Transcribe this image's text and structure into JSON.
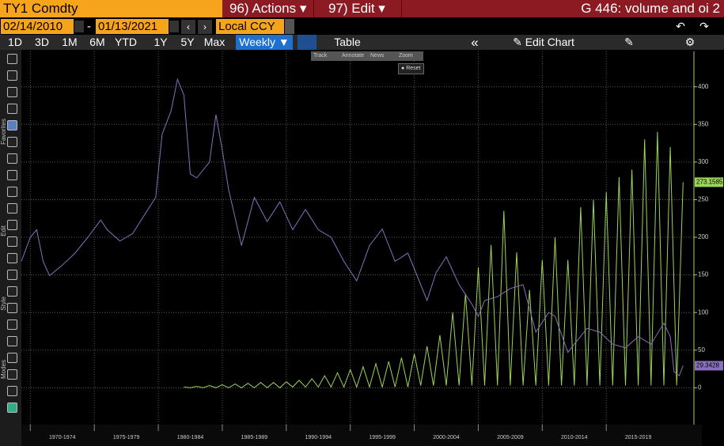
{
  "header": {
    "security": "TY1 Comdty",
    "actions": "96) Actions ▾",
    "edit": "97) Edit ▾",
    "title": "G 446: volume and oi 2"
  },
  "dates": {
    "start": "02/14/2010",
    "separator": "-",
    "end": "01/13/2021",
    "currency": "Local CCY"
  },
  "toolbar": {
    "periods": [
      "1D",
      "3D",
      "1M",
      "6M",
      "YTD",
      "1Y",
      "5Y",
      "Max"
    ],
    "frequency": "Weekly ▼",
    "table": "Table",
    "collapse": "«",
    "edit_chart": "Edit Chart"
  },
  "chart_tools": {
    "items": [
      "Track",
      "Annotate",
      "News",
      "Zoom"
    ],
    "reset": "Reset"
  },
  "sidebar": {
    "sections": [
      "Favorites",
      "Edit",
      "Style",
      "Modes"
    ]
  },
  "chart_data": {
    "type": "line",
    "xlim": [
      1969.3,
      2021.85
    ],
    "xticks": [
      {
        "value": 1970,
        "label": "1970-1974"
      },
      {
        "value": 1975,
        "label": "1975-1979"
      },
      {
        "value": 1980,
        "label": "1980-1984"
      },
      {
        "value": 1985,
        "label": "1985-1989"
      },
      {
        "value": 1990,
        "label": "1990-1994"
      },
      {
        "value": 1995,
        "label": "1995-1999"
      },
      {
        "value": 2000,
        "label": "2000-2004"
      },
      {
        "value": 2005,
        "label": "2005-2009"
      },
      {
        "value": 2010,
        "label": "2010-2014"
      },
      {
        "value": 2015,
        "label": "2015-2019"
      }
    ],
    "ylim": [
      -49,
      447
    ],
    "yticks": [
      0,
      50,
      100,
      150,
      200,
      250,
      300,
      350,
      400
    ],
    "grid": true,
    "series": [
      {
        "color": "#9bd45a",
        "x": [
          1982,
          1982.5,
          1983,
          1983.5,
          1984,
          1984.5,
          1985,
          1985.5,
          1986,
          1986.5,
          1987,
          1987.5,
          1988,
          1988.5,
          1989,
          1989.5,
          1990,
          1990.5,
          1991,
          1991.5,
          1992,
          1992.5,
          1993,
          1993.5,
          1994,
          1994.5,
          1995,
          1995.5,
          1996,
          1996.5,
          1997,
          1997.5,
          1998,
          1998.5,
          1999,
          1999.5,
          2000,
          2000.5,
          2001,
          2001.5,
          2002,
          2002.5,
          2003,
          2003.5,
          2004,
          2004.5,
          2005,
          2005.5,
          2006,
          2006.5,
          2007,
          2007.5,
          2008,
          2008.5,
          2009,
          2009.5,
          2010,
          2010.5,
          2011,
          2011.5,
          2012,
          2012.5,
          2013,
          2013.5,
          2014,
          2014.5,
          2015,
          2015.5,
          2016,
          2016.5,
          2017,
          2017.5,
          2018,
          2018.5,
          2019,
          2019.5,
          2020,
          2020.5,
          2021.0
        ],
        "values": [
          1,
          0,
          2,
          0,
          3,
          0,
          4,
          0,
          5,
          0,
          6,
          0,
          7,
          0,
          7,
          0,
          8,
          1,
          10,
          1,
          12,
          1,
          16,
          1,
          20,
          1,
          24,
          1,
          28,
          1,
          32,
          1,
          35,
          1,
          40,
          1,
          45,
          3,
          55,
          3,
          70,
          3,
          100,
          3,
          125,
          3,
          160,
          3,
          190,
          3,
          235,
          3,
          180,
          3,
          130,
          3,
          170,
          3,
          200,
          3,
          170,
          3,
          240,
          3,
          250,
          3,
          260,
          3,
          280,
          3,
          290,
          3,
          330,
          3,
          340,
          3,
          320,
          3,
          273.1585
        ]
      },
      {
        "color": "#8a6fc0",
        "x": [
          1969.3,
          1970.0,
          1970.5,
          1971.0,
          1971.5,
          1972.5,
          1973.5,
          1974.5,
          1975.5,
          1976.0,
          1977.0,
          1978.0,
          1979.0,
          1979.8,
          1980.3,
          1981.0,
          1981.5,
          1982.0,
          1982.5,
          1983.0,
          1984.0,
          1984.5,
          1985.0,
          1985.5,
          1986.5,
          1987.0,
          1987.5,
          1988.5,
          1989.5,
          1990.5,
          1991.5,
          1992.5,
          1993.5,
          1994.5,
          1995.5,
          1996.5,
          1997.5,
          1998.5,
          1999.5,
          2000.5,
          2001.0,
          2001.7,
          2002.5,
          2003.5,
          2004.5,
          2005.0,
          2005.5,
          2006.5,
          2007.5,
          2008.5,
          2009.0,
          2009.5,
          2010.5,
          2011.0,
          2012.0,
          2012.5,
          2013.5,
          2014.5,
          2015.5,
          2016.5,
          2017.5,
          2018.5,
          2019.5,
          2020.0,
          2020.3,
          2020.7,
          2021.0
        ],
        "values": [
          168,
          200,
          210,
          168,
          149,
          163,
          179,
          200,
          223,
          210,
          195,
          205,
          232,
          253,
          337,
          368,
          410,
          389,
          284,
          279,
          300,
          363,
          316,
          263,
          189,
          221,
          253,
          221,
          247,
          210,
          237,
          210,
          200,
          168,
          142,
          189,
          211,
          168,
          179,
          137,
          116,
          153,
          174,
          137,
          111,
          95,
          116,
          121,
          132,
          137,
          105,
          74,
          100,
          95,
          47,
          58,
          79,
          74,
          58,
          53,
          68,
          58,
          86,
          68,
          21,
          16,
          29.3428
        ]
      }
    ]
  }
}
